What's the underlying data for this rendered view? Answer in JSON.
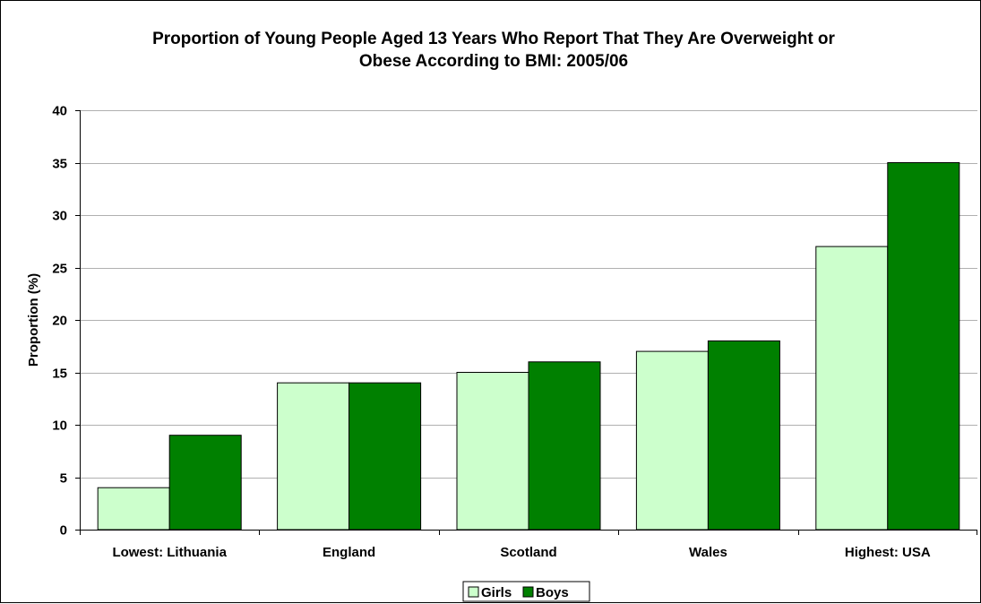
{
  "chart_data": {
    "type": "bar",
    "title_lines": [
      "Proportion of Young People Aged 13 Years Who Report That They Are Overweight or",
      "Obese According to BMI: 2005/06"
    ],
    "ylabel": "Proportion (%)",
    "xlabel": "",
    "ylim": [
      0,
      40
    ],
    "yticks": [
      "0",
      "5",
      "10",
      "15",
      "20",
      "25",
      "30",
      "35",
      "40"
    ],
    "ytick_values": [
      0,
      5,
      10,
      15,
      20,
      25,
      30,
      35,
      40
    ],
    "grid": true,
    "legend_position": "bottom",
    "categories": [
      "Lowest: Lithuania",
      "England",
      "Scotland",
      "Wales",
      "Highest: USA"
    ],
    "series": [
      {
        "name": "Girls",
        "values": [
          4,
          14,
          15,
          17,
          27
        ],
        "color": "#ccffcc"
      },
      {
        "name": "Boys",
        "values": [
          9,
          14,
          16,
          18,
          35
        ],
        "color": "#008000"
      }
    ]
  }
}
